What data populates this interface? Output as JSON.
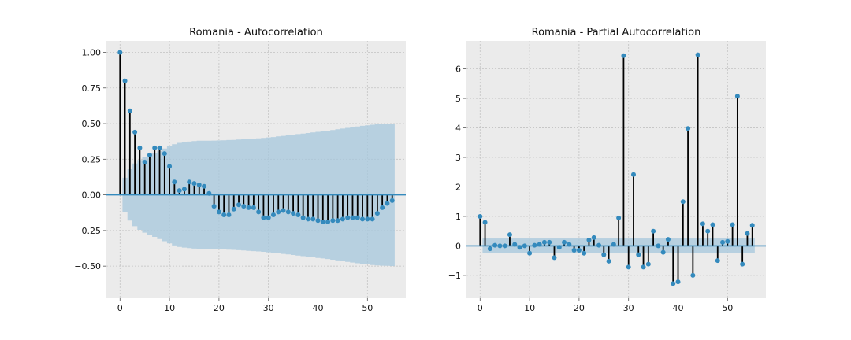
{
  "chart_data": [
    {
      "type": "stem",
      "title": "Romania - Autocorrelation",
      "xlim": [
        -2.75,
        57.75
      ],
      "ylim": [
        -0.72,
        1.08
      ],
      "xticks": [
        0,
        10,
        20,
        30,
        40,
        50
      ],
      "yticks": [
        -0.5,
        -0.25,
        0.0,
        0.25,
        0.5,
        0.75,
        1.0
      ],
      "ytick_labels": [
        "−0.50",
        "−0.25",
        "0.00",
        "0.25",
        "0.50",
        "0.75",
        "1.00"
      ],
      "grid": true,
      "x": [
        0,
        1,
        2,
        3,
        4,
        5,
        6,
        7,
        8,
        9,
        10,
        11,
        12,
        13,
        14,
        15,
        16,
        17,
        18,
        19,
        20,
        21,
        22,
        23,
        24,
        25,
        26,
        27,
        28,
        29,
        30,
        31,
        32,
        33,
        34,
        35,
        36,
        37,
        38,
        39,
        40,
        41,
        42,
        43,
        44,
        45,
        46,
        47,
        48,
        49,
        50,
        51,
        52,
        53,
        54,
        55
      ],
      "values": [
        1.0,
        0.8,
        0.59,
        0.44,
        0.33,
        0.23,
        0.28,
        0.33,
        0.33,
        0.29,
        0.2,
        0.09,
        0.03,
        0.04,
        0.09,
        0.08,
        0.07,
        0.06,
        0.01,
        -0.08,
        -0.12,
        -0.14,
        -0.14,
        -0.1,
        -0.07,
        -0.08,
        -0.09,
        -0.09,
        -0.12,
        -0.16,
        -0.16,
        -0.14,
        -0.12,
        -0.11,
        -0.12,
        -0.13,
        -0.14,
        -0.16,
        -0.17,
        -0.17,
        -0.18,
        -0.19,
        -0.19,
        -0.18,
        -0.18,
        -0.17,
        -0.16,
        -0.16,
        -0.16,
        -0.17,
        -0.17,
        -0.17,
        -0.13,
        -0.09,
        -0.06,
        -0.04
      ],
      "confint": [
        1e-09,
        0.12,
        0.18,
        0.22,
        0.245,
        0.265,
        0.28,
        0.295,
        0.31,
        0.325,
        0.34,
        0.355,
        0.365,
        0.37,
        0.374,
        0.377,
        0.38,
        0.38,
        0.38,
        0.381,
        0.382,
        0.383,
        0.385,
        0.386,
        0.388,
        0.39,
        0.393,
        0.395,
        0.397,
        0.4,
        0.403,
        0.406,
        0.41,
        0.414,
        0.418,
        0.422,
        0.426,
        0.43,
        0.434,
        0.438,
        0.442,
        0.446,
        0.45,
        0.455,
        0.46,
        0.465,
        0.47,
        0.475,
        0.48,
        0.484,
        0.488,
        0.492,
        0.495,
        0.497,
        0.498,
        0.499
      ]
    },
    {
      "type": "stem",
      "title": "Romania - Partial Autocorrelation",
      "xlim": [
        -2.75,
        57.75
      ],
      "ylim": [
        -1.75,
        6.95
      ],
      "xticks": [
        0,
        10,
        20,
        30,
        40,
        50
      ],
      "yticks": [
        -1,
        0,
        1,
        2,
        3,
        4,
        5,
        6
      ],
      "ytick_labels": [
        "−1",
        "0",
        "1",
        "2",
        "3",
        "4",
        "5",
        "6"
      ],
      "grid": true,
      "x": [
        0,
        1,
        2,
        3,
        4,
        5,
        6,
        7,
        8,
        9,
        10,
        11,
        12,
        13,
        14,
        15,
        16,
        17,
        18,
        19,
        20,
        21,
        22,
        23,
        24,
        25,
        26,
        27,
        28,
        29,
        30,
        31,
        32,
        33,
        34,
        35,
        36,
        37,
        38,
        39,
        40,
        41,
        42,
        43,
        44,
        45,
        46,
        47,
        48,
        49,
        50,
        51,
        52,
        53,
        54,
        55
      ],
      "values": [
        1.0,
        0.8,
        -0.1,
        0.02,
        0.0,
        0.0,
        0.38,
        0.05,
        -0.05,
        0.0,
        -0.25,
        0.02,
        0.05,
        0.12,
        0.12,
        -0.4,
        -0.05,
        0.12,
        0.05,
        -0.15,
        -0.15,
        -0.25,
        0.2,
        0.28,
        0.02,
        -0.3,
        -0.52,
        0.05,
        0.95,
        6.45,
        -0.72,
        2.42,
        -0.3,
        -0.72,
        -0.62,
        0.5,
        0.0,
        -0.22,
        0.22,
        -1.28,
        -1.22,
        1.5,
        3.98,
        -1.0,
        6.48,
        0.75,
        0.5,
        0.72,
        -0.5,
        0.12,
        0.15,
        0.72,
        5.08,
        -0.62,
        0.42,
        0.7
      ],
      "band_x": [
        1,
        55
      ],
      "band": 0.25
    }
  ],
  "colors": {
    "axes_bg": "#ebebeb",
    "grid": "#c2c2c2",
    "stem": "#000000",
    "marker": "#348abd",
    "zero_line": "#348abd",
    "band": "#a6c7dc"
  }
}
